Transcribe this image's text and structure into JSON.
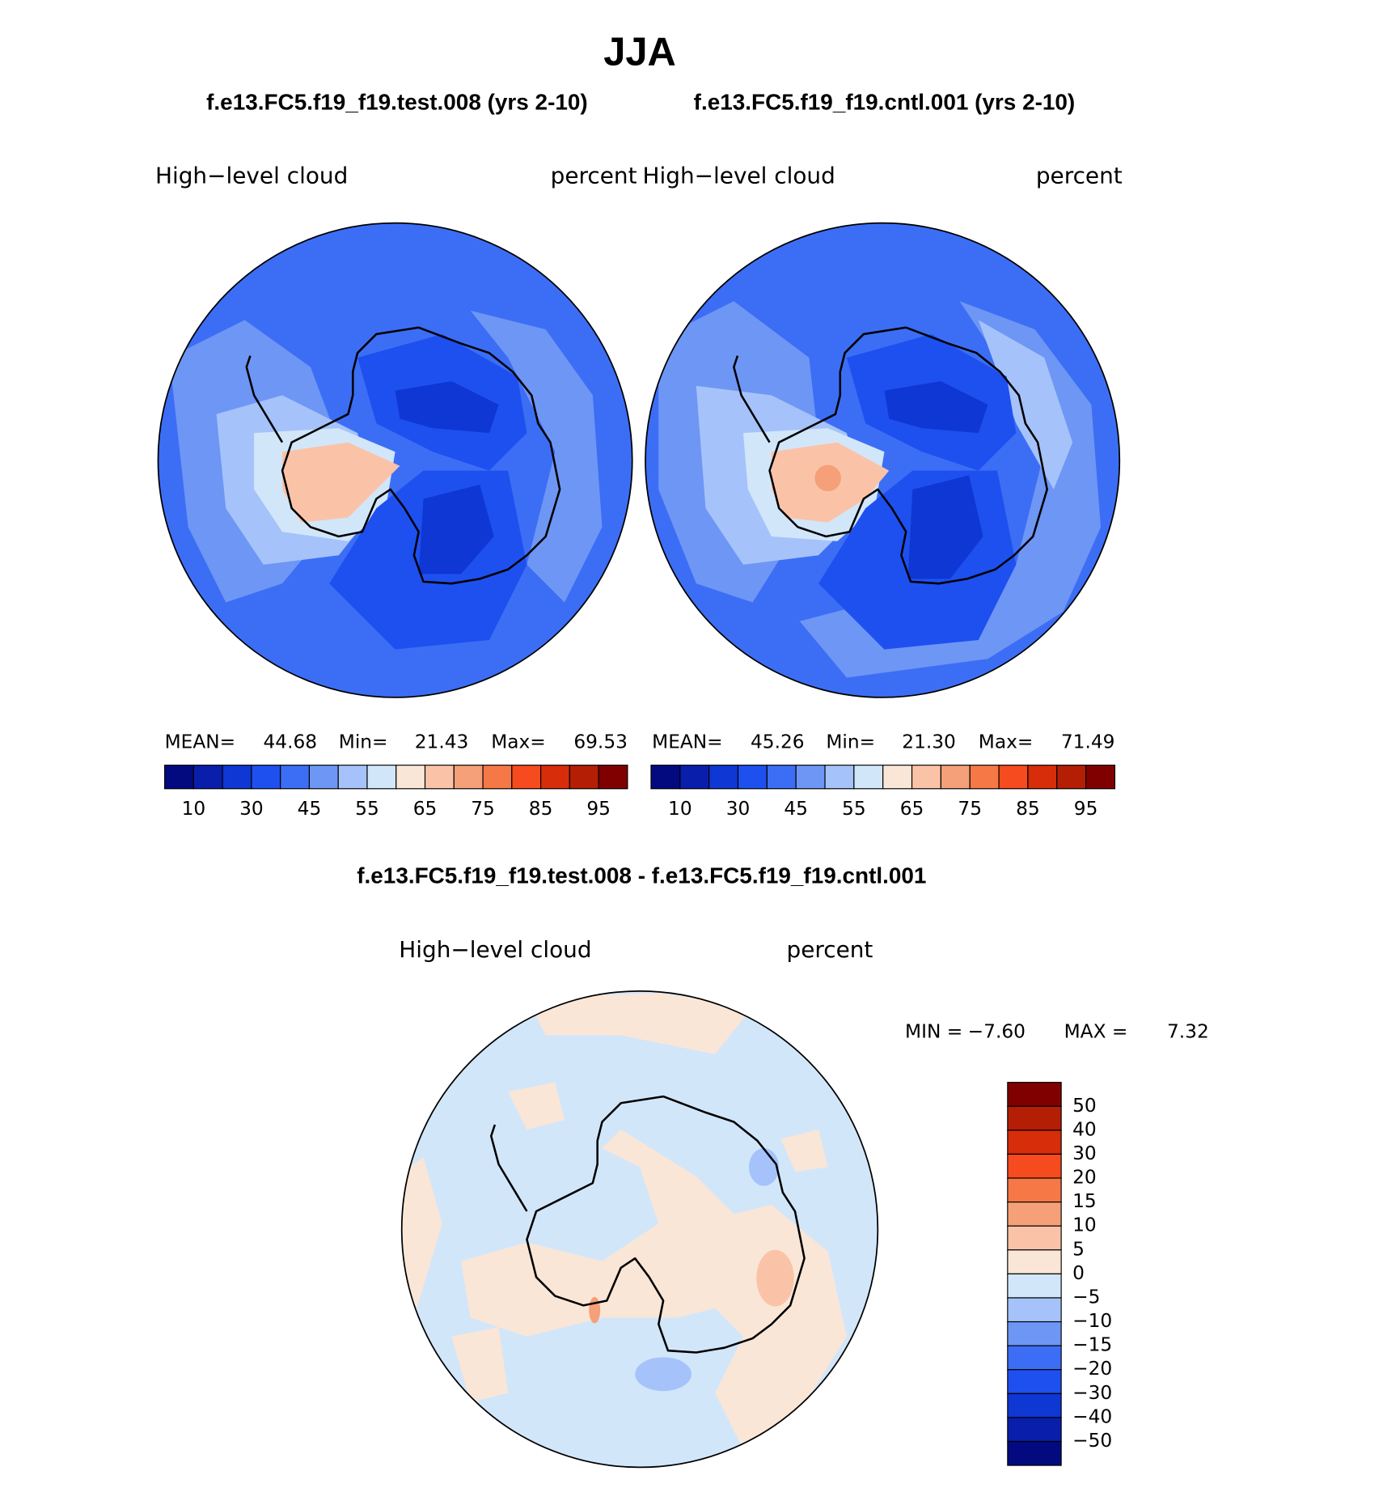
{
  "title": "JJA",
  "panels": [
    {
      "subtitle": "f.e13.FC5.f19_f19.test.008 (yrs 2-10)",
      "variable": "High−level cloud",
      "units": "percent",
      "stats": [
        {
          "label": "MEAN=",
          "value": 44.68
        },
        {
          "label": "Min=",
          "value": 21.43
        },
        {
          "label": "Max=",
          "value": 69.53
        }
      ]
    },
    {
      "subtitle": "f.e13.FC5.f19_f19.cntl.001 (yrs 2-10)",
      "variable": "High−level cloud",
      "units": "percent",
      "stats": [
        {
          "label": "MEAN=",
          "value": 45.26
        },
        {
          "label": "Min=",
          "value": {
            "value": 21.3,
            "label": "21.30"
          }
        },
        {
          "label": "Max=",
          "value": 71.49
        }
      ]
    }
  ],
  "colorbar": {
    "colors": [
      "#030a80",
      "#0a1eac",
      "#0f37d4",
      "#1e50f0",
      "#3c6ef5",
      "#6e96f5",
      "#a5c3fa",
      "#d2e6fa",
      "#fae6d7",
      "#fac3a8",
      "#f5a078",
      "#f57846",
      "#f54b1e",
      "#d72d0a",
      "#b41e05",
      "#800000"
    ],
    "ticks": [
      10,
      30,
      45,
      55,
      65,
      75,
      85,
      95
    ]
  },
  "difference": {
    "subtitle": "f.e13.FC5.f19_f19.test.008 - f.e13.FC5.f19_f19.cntl.001",
    "variable": "High−level cloud",
    "units": "percent",
    "min_label": "MIN =",
    "min": {
      "value": -7.6,
      "label": "−7.60"
    },
    "max_label": "MAX =",
    "max": 7.32,
    "colorbar": {
      "colors": [
        "#800000",
        "#b41e05",
        "#d72d0a",
        "#f54b1e",
        "#f57846",
        "#f5a078",
        "#fac3a8",
        "#fae6d7",
        "#d2e6fa",
        "#a5c3fa",
        "#6e96f5",
        "#3c6ef5",
        "#1e50f0",
        "#0f37d4",
        "#0a1eac",
        "#030a80"
      ],
      "ticks": [
        50,
        40,
        30,
        20,
        15,
        10,
        5,
        0,
        {
          "value": -5,
          "label": "−5"
        },
        {
          "value": -10,
          "label": "−10"
        },
        {
          "value": -15,
          "label": "−15"
        },
        {
          "value": -20,
          "label": "−20"
        },
        {
          "value": -30,
          "label": "−30"
        },
        {
          "value": -40,
          "label": "−40"
        },
        {
          "value": -50,
          "label": "−50"
        }
      ]
    }
  }
}
